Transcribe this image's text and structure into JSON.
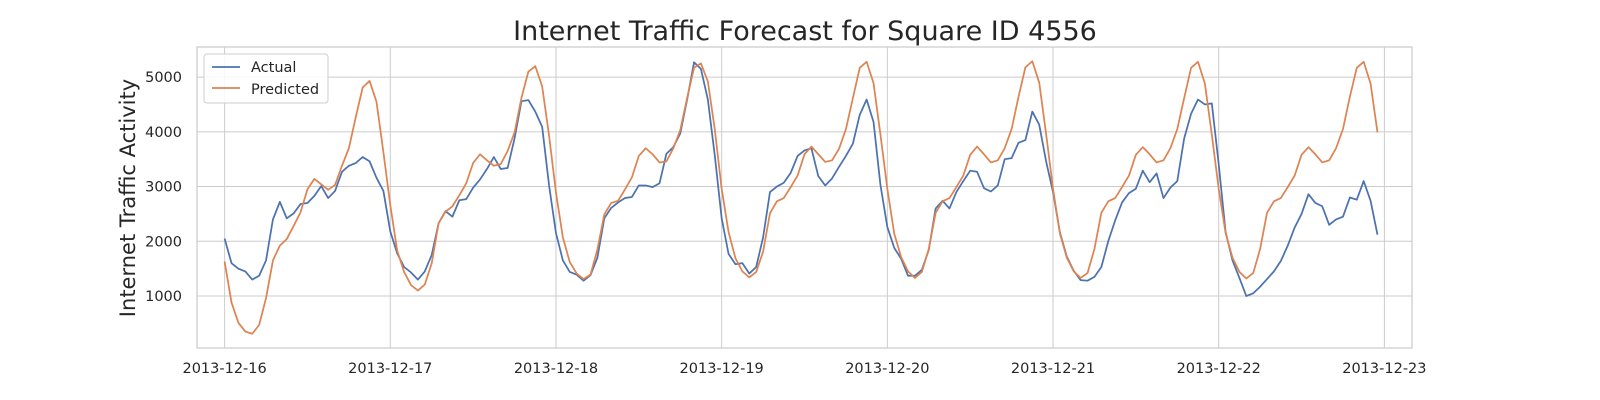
{
  "chart_data": {
    "type": "line",
    "title": "Internet Traffic Forecast for Square ID 4556",
    "xlabel": "",
    "ylabel": "Internet Traffic Activity",
    "xlim": [
      "2013-12-15T20:00",
      "2013-12-23T04:00"
    ],
    "ylim": [
      50,
      5550
    ],
    "x_ticks": [
      "2013-12-16",
      "2013-12-17",
      "2013-12-18",
      "2013-12-19",
      "2013-12-20",
      "2013-12-21",
      "2013-12-22",
      "2013-12-23"
    ],
    "y_ticks": [
      1000,
      2000,
      3000,
      4000,
      5000
    ],
    "grid": true,
    "legend_position": "top-left",
    "colors": {
      "Actual": "#4c72b0",
      "Predicted": "#dd8452",
      "grid": "#cccccc",
      "spine": "#cccccc"
    },
    "x_start": "2013-12-16T00:00",
    "x_step": "1h",
    "series": [
      {
        "name": "Actual",
        "values": [
          2050,
          1600,
          1500,
          1450,
          1300,
          1370,
          1650,
          2400,
          2720,
          2420,
          2510,
          2680,
          2700,
          2830,
          3010,
          2790,
          2920,
          3270,
          3380,
          3430,
          3540,
          3460,
          3160,
          2920,
          2180,
          1780,
          1530,
          1430,
          1300,
          1450,
          1750,
          2330,
          2550,
          2450,
          2750,
          2770,
          2980,
          3130,
          3320,
          3540,
          3320,
          3340,
          3880,
          4560,
          4580,
          4370,
          4090,
          3020,
          2150,
          1650,
          1440,
          1390,
          1280,
          1380,
          1700,
          2420,
          2610,
          2710,
          2790,
          2810,
          3020,
          3020,
          2990,
          3060,
          3600,
          3720,
          3970,
          4590,
          5270,
          5150,
          4590,
          3570,
          2420,
          1770,
          1580,
          1600,
          1410,
          1530,
          2070,
          2900,
          3000,
          3070,
          3250,
          3560,
          3660,
          3700,
          3190,
          3020,
          3150,
          3360,
          3560,
          3780,
          4310,
          4590,
          4180,
          3030,
          2260,
          1880,
          1680,
          1370,
          1370,
          1480,
          1840,
          2600,
          2740,
          2600,
          2900,
          3100,
          3290,
          3270,
          2970,
          2910,
          3020,
          3500,
          3520,
          3800,
          3850,
          4370,
          4130,
          3460,
          2900,
          2160,
          1720,
          1460,
          1290,
          1280,
          1350,
          1530,
          2000,
          2380,
          2710,
          2880,
          2960,
          3290,
          3080,
          3240,
          2790,
          2980,
          3100,
          3880,
          4330,
          4590,
          4500,
          4520,
          3410,
          2170,
          1650,
          1330,
          1000,
          1050,
          1170,
          1310,
          1450,
          1640,
          1920,
          2250,
          2500,
          2860,
          2700,
          2640,
          2300,
          2400,
          2450,
          2800,
          2760,
          3100,
          2740,
          2120
        ]
      },
      {
        "name": "Predicted",
        "values": [
          1630,
          880,
          510,
          350,
          310,
          470,
          960,
          1650,
          1920,
          2040,
          2280,
          2530,
          2950,
          3140,
          3040,
          2940,
          3030,
          3380,
          3700,
          4270,
          4810,
          4930,
          4550,
          3630,
          2660,
          1830,
          1440,
          1200,
          1100,
          1210,
          1600,
          2330,
          2540,
          2640,
          2840,
          3060,
          3430,
          3590,
          3480,
          3380,
          3410,
          3650,
          3990,
          4620,
          5100,
          5200,
          4830,
          3930,
          2890,
          2070,
          1620,
          1410,
          1310,
          1390,
          1850,
          2490,
          2700,
          2740,
          2950,
          3170,
          3560,
          3700,
          3590,
          3440,
          3460,
          3700,
          4030,
          4620,
          5170,
          5250,
          4920,
          4050,
          2960,
          2170,
          1690,
          1450,
          1340,
          1440,
          1810,
          2510,
          2730,
          2790,
          2990,
          3200,
          3590,
          3730,
          3590,
          3450,
          3480,
          3690,
          4050,
          4610,
          5170,
          5280,
          4890,
          3950,
          2960,
          2140,
          1710,
          1450,
          1330,
          1440,
          1860,
          2520,
          2730,
          2790,
          2990,
          3200,
          3580,
          3730,
          3590,
          3440,
          3480,
          3700,
          4050,
          4640,
          5180,
          5290,
          4900,
          3960,
          2960,
          2140,
          1700,
          1450,
          1330,
          1420,
          1860,
          2520,
          2730,
          2790,
          2990,
          3200,
          3580,
          3720,
          3590,
          3440,
          3480,
          3700,
          4050,
          4620,
          5170,
          5280,
          4880,
          3950,
          2960,
          2150,
          1700,
          1440,
          1320,
          1420,
          1860,
          2520,
          2730,
          2790,
          2990,
          3200,
          3580,
          3720,
          3590,
          3440,
          3480,
          3700,
          4050,
          4640,
          5170,
          5280,
          4880,
          3990
        ]
      }
    ]
  }
}
